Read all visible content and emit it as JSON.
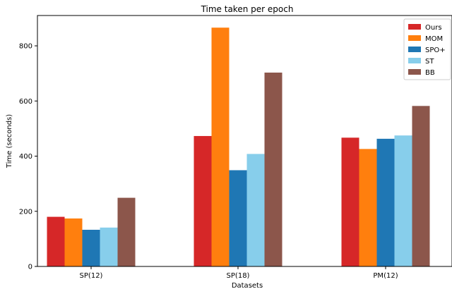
{
  "chart_data": {
    "type": "bar",
    "title": "Time taken per epoch",
    "xlabel": "Datasets",
    "ylabel": "Time (seconds)",
    "categories": [
      "SP(12)",
      "SP(18)",
      "PM(12)"
    ],
    "ylim": [
      0,
      910
    ],
    "yticks": [
      0,
      200,
      400,
      600,
      800
    ],
    "grid": false,
    "legend_position": "top-right",
    "series": [
      {
        "name": "Ours",
        "color": "#d62728",
        "values": [
          180,
          473,
          467
        ]
      },
      {
        "name": "MOM",
        "color": "#ff7f0e",
        "values": [
          174,
          866,
          426
        ]
      },
      {
        "name": "SPO+",
        "color": "#1f77b4",
        "values": [
          133,
          349,
          463
        ]
      },
      {
        "name": "ST",
        "color": "#87ceeb",
        "values": [
          141,
          408,
          475
        ]
      },
      {
        "name": "BB",
        "color": "#8c564b",
        "values": [
          249,
          703,
          582
        ]
      }
    ]
  }
}
